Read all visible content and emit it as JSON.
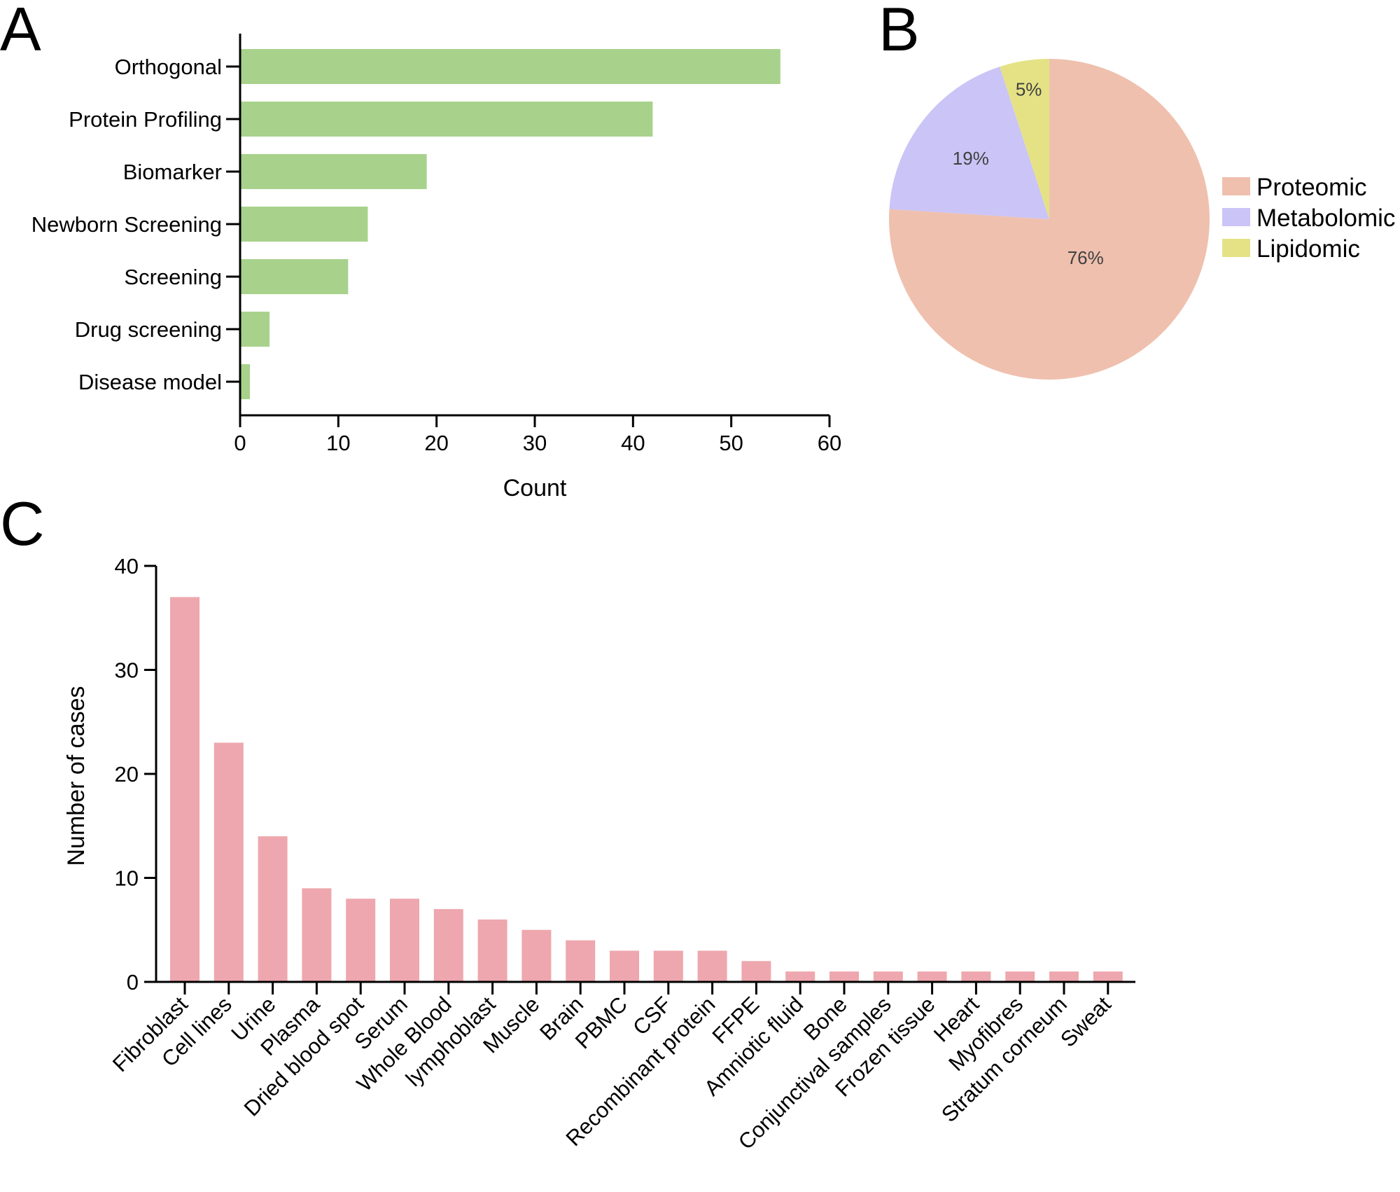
{
  "panels": {
    "a": "A",
    "b": "B",
    "c": "C"
  },
  "colors": {
    "bar_a": "#a8d28c",
    "bar_c": "#eea7ae",
    "proteomic": "#efc0ae",
    "metabolomic": "#cbc4f6",
    "lipidomic": "#e5e286"
  },
  "chart_data": [
    {
      "id": "A",
      "type": "bar",
      "orientation": "horizontal",
      "categories": [
        "Orthogonal",
        "Protein Profiling",
        "Biomarker",
        "Newborn Screening",
        "Screening",
        "Drug screening",
        "Disease model"
      ],
      "values": [
        55,
        42,
        19,
        13,
        11,
        3,
        1
      ],
      "xlabel": "Count",
      "ylabel": "",
      "xlim": [
        0,
        60
      ],
      "xticks": [
        "0",
        "10",
        "20",
        "30",
        "40",
        "50",
        "60"
      ],
      "grid": false
    },
    {
      "id": "B",
      "type": "pie",
      "labels": [
        "Proteomic",
        "Metabolomic",
        "Lipidomic"
      ],
      "values": [
        76,
        19,
        5
      ],
      "value_labels": [
        "76%",
        "19%",
        "5%"
      ],
      "legend_position": "right"
    },
    {
      "id": "C",
      "type": "bar",
      "orientation": "vertical",
      "categories": [
        "Fibroblast",
        "Cell lines",
        "Urine",
        "Plasma",
        "Dried blood spot",
        "Serum",
        "Whole Blood",
        "lymphoblast",
        "Muscle",
        "Brain",
        "PBMC",
        "CSF",
        "Recombinant protein",
        "FFPE",
        "Amniotic fluid",
        "Bone",
        "Conjunctival samples",
        "Frozen tissue",
        "Heart",
        "Myofibres",
        "Stratum corneum",
        "Sweat"
      ],
      "values": [
        37,
        23,
        14,
        9,
        8,
        8,
        7,
        6,
        5,
        4,
        3,
        3,
        3,
        2,
        1,
        1,
        1,
        1,
        1,
        1,
        1,
        1
      ],
      "xlabel": "",
      "ylabel": "Number of cases",
      "ylim": [
        0,
        40
      ],
      "yticks": [
        "0",
        "10",
        "20",
        "30",
        "40"
      ],
      "grid": false
    }
  ]
}
